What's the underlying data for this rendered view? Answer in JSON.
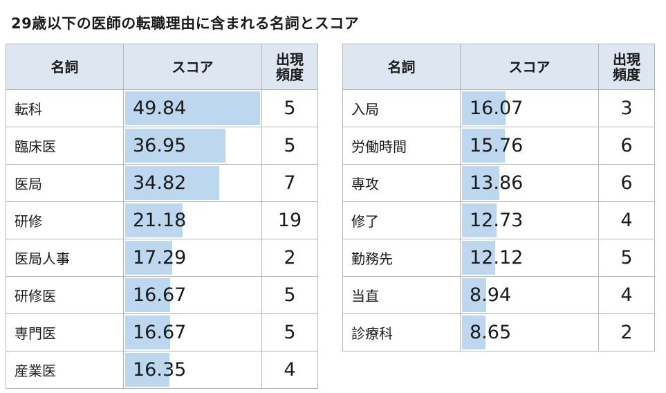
{
  "title": "29歳以下の医師の転職理由に含まれる名詞とスコア",
  "headers": {
    "noun": "名詞",
    "score": "スコア",
    "freq_line1": "出現",
    "freq_line2": "頻度"
  },
  "chart_data": {
    "type": "table",
    "title": "29歳以下の医師の転職理由に含まれる名詞とスコア",
    "score_bar_max": 50,
    "tables": [
      {
        "rows": [
          {
            "noun": "転科",
            "score": "49.84",
            "freq": "5"
          },
          {
            "noun": "臨床医",
            "score": "36.95",
            "freq": "5"
          },
          {
            "noun": "医局",
            "score": "34.82",
            "freq": "7"
          },
          {
            "noun": "研修",
            "score": "21.18",
            "freq": "19"
          },
          {
            "noun": "医局人事",
            "score": "17.29",
            "freq": "2"
          },
          {
            "noun": "研修医",
            "score": "16.67",
            "freq": "5"
          },
          {
            "noun": "専門医",
            "score": "16.67",
            "freq": "5"
          },
          {
            "noun": "産業医",
            "score": "16.35",
            "freq": "4"
          }
        ]
      },
      {
        "rows": [
          {
            "noun": "入局",
            "score": "16.07",
            "freq": "3"
          },
          {
            "noun": "労働時間",
            "score": "15.76",
            "freq": "6"
          },
          {
            "noun": "専攻",
            "score": "13.86",
            "freq": "6"
          },
          {
            "noun": "修了",
            "score": "12.73",
            "freq": "4"
          },
          {
            "noun": "勤務先",
            "score": "12.12",
            "freq": "5"
          },
          {
            "noun": "当直",
            "score": "8.94",
            "freq": "4"
          },
          {
            "noun": "診療科",
            "score": "8.65",
            "freq": "2"
          }
        ]
      }
    ]
  }
}
